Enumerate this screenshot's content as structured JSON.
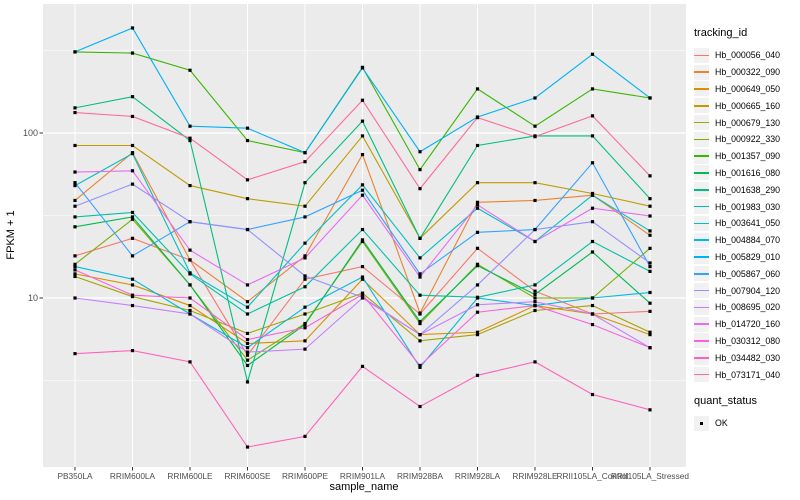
{
  "chart_data": {
    "type": "line",
    "title": "",
    "xlabel": "sample_name",
    "ylabel": "FPKM + 1",
    "yscale": "log10",
    "y_ticks": [
      10,
      100
    ],
    "y_tick_labels": [
      "10",
      "100"
    ],
    "y_minor": [
      3.1623,
      31.6228,
      316.228
    ],
    "ylim": [
      1.1,
      600
    ],
    "grid": "on",
    "legend_position": "right",
    "legend_title": "tracking_id",
    "quant_legend_title": "quant_status",
    "quant_status_value": "OK",
    "point_shape": "black-square",
    "colors": {
      "panel_bg": "#EBEBEB",
      "grid": "#FFFFFF",
      "axis_text": "#4D4D4D",
      "tick": "#333333",
      "legend_key_bg": "#F1F1F1",
      "point": "#000000"
    },
    "categories": [
      "PB350LA",
      "RRIM600LA",
      "RRIM600LE",
      "RRIM600SE",
      "RRIM600PE",
      "RRIM901LA",
      "RRIM928BA",
      "RRIM928LA",
      "RRIM928LE",
      "RRII105LA_Control",
      "RRII105LA_Stressed"
    ],
    "series": [
      {
        "name": "Hb_000056_040",
        "color": "#F8766D",
        "values": [
          18,
          23,
          17,
          4.5,
          13,
          15.5,
          8,
          20,
          11,
          8,
          8.3
        ]
      },
      {
        "name": "Hb_000322_090",
        "color": "#EA8331",
        "values": [
          39,
          76,
          17,
          9.5,
          18,
          74,
          8.1,
          38,
          39,
          42,
          24
        ]
      },
      {
        "name": "Hb_000649_050",
        "color": "#D89000",
        "values": [
          14,
          12,
          9,
          5.3,
          5.5,
          13,
          6,
          6.2,
          9,
          8,
          6
        ]
      },
      {
        "name": "Hb_000665_160",
        "color": "#C09B00",
        "values": [
          84,
          84,
          48,
          40,
          36,
          96,
          23,
          50,
          50,
          43,
          36
        ]
      },
      {
        "name": "Hb_000679_130",
        "color": "#A3A500",
        "values": [
          13.5,
          10.2,
          8.4,
          6.1,
          8,
          10.7,
          5.5,
          6,
          8.4,
          9,
          6.2
        ]
      },
      {
        "name": "Hb_000922_330",
        "color": "#7CAE00",
        "values": [
          16,
          30,
          12,
          4.2,
          7,
          22,
          7,
          16,
          10,
          10,
          20
        ]
      },
      {
        "name": "Hb_001357_090",
        "color": "#39B600",
        "values": [
          310,
          305,
          240,
          90,
          76,
          250,
          60,
          185,
          110,
          185,
          163
        ]
      },
      {
        "name": "Hb_001616_080",
        "color": "#00BB4E",
        "values": [
          27,
          31,
          12,
          3.9,
          6.9,
          22.5,
          7.2,
          15.7,
          10.5,
          19,
          9.3
        ]
      },
      {
        "name": "Hb_001638_290",
        "color": "#00BF7D",
        "values": [
          142,
          166,
          90,
          3.1,
          50,
          118,
          23,
          84,
          96,
          96,
          40
        ]
      },
      {
        "name": "Hb_001983_030",
        "color": "#00C1A3",
        "values": [
          31,
          33,
          14,
          8,
          11.7,
          26,
          10.4,
          10.1,
          12,
          22,
          14.5
        ]
      },
      {
        "name": "Hb_003641_050",
        "color": "#00BFC4",
        "values": [
          48,
          75,
          14.2,
          8.8,
          21.5,
          48.5,
          17.5,
          35,
          22,
          42,
          25.5
        ]
      },
      {
        "name": "Hb_004884_070",
        "color": "#00BAE0",
        "values": [
          15.5,
          13,
          8,
          5,
          8.8,
          13.4,
          3.8,
          10,
          9,
          10,
          10.8
        ]
      },
      {
        "name": "Hb_005829_010",
        "color": "#00B0F6",
        "values": [
          310,
          433,
          110,
          107,
          76,
          248,
          77,
          125,
          163,
          300,
          163
        ]
      },
      {
        "name": "Hb_005867_060",
        "color": "#35A2FF",
        "values": [
          50,
          18,
          29,
          26,
          31,
          45,
          14,
          25,
          26,
          66,
          15.5
        ]
      },
      {
        "name": "Hb_007904_120",
        "color": "#9590FF",
        "values": [
          36,
          49,
          29,
          26,
          13.6,
          10.1,
          6,
          12,
          26,
          29,
          16.3
        ]
      },
      {
        "name": "Hb_008695_020",
        "color": "#C77CFF",
        "values": [
          10,
          9,
          8,
          4.7,
          4.9,
          10,
          6,
          9.1,
          9.5,
          8,
          5
        ]
      },
      {
        "name": "Hb_014720_160",
        "color": "#E76BF3",
        "values": [
          58,
          59,
          19.5,
          12,
          17.5,
          42,
          13.4,
          36.7,
          22,
          35,
          31.4
        ]
      },
      {
        "name": "Hb_030312_080",
        "color": "#FA62DB",
        "values": [
          14.8,
          10.4,
          10,
          5.6,
          6.6,
          10.5,
          3.9,
          8.2,
          9,
          6.9,
          5
        ]
      },
      {
        "name": "Hb_034482_030",
        "color": "#FF62BC",
        "values": [
          4.6,
          4.8,
          4.1,
          1.25,
          1.45,
          3.85,
          2.2,
          3.4,
          4.1,
          2.6,
          2.1
        ]
      },
      {
        "name": "Hb_073171_040",
        "color": "#FF6A98",
        "values": [
          133,
          126,
          93,
          52,
          67,
          158,
          46,
          124,
          95,
          127,
          55
        ]
      }
    ]
  }
}
